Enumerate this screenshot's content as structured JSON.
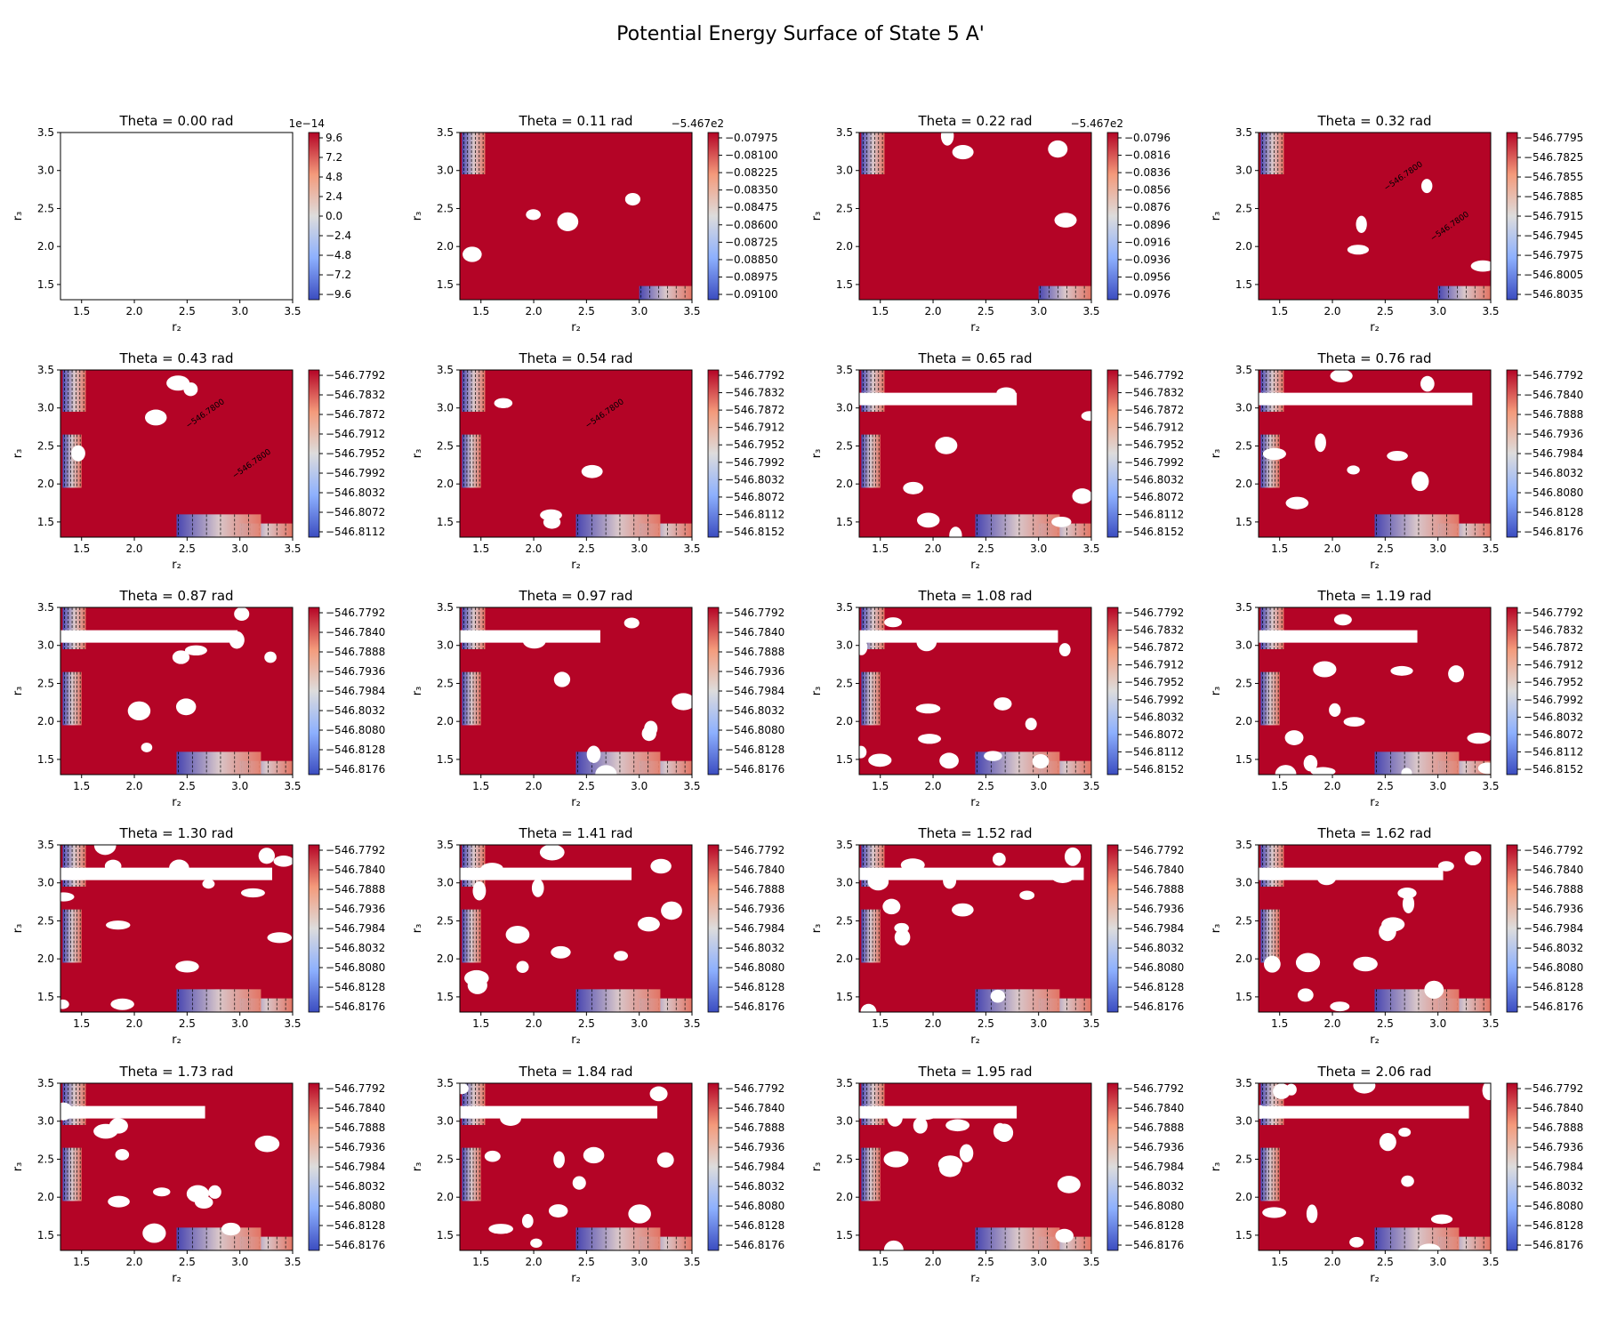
{
  "figure": {
    "title": "Potential Energy Surface of State 5 A'"
  },
  "colors": {
    "dominant": "#b40426",
    "high": "#b40426",
    "mid": "#dddcdc",
    "low": "#3b4cc0",
    "hole": "#ffffff"
  },
  "chart_data": [
    {
      "type": "heatmap",
      "title": "Theta = 0.00 rad",
      "xlabel": "r₂",
      "ylabel": "r₃",
      "xlim": [
        1.3,
        3.5
      ],
      "ylim": [
        1.3,
        3.5
      ],
      "xticks": [
        "1.5",
        "2.0",
        "2.5",
        "3.0",
        "3.5"
      ],
      "yticks": [
        "1.5",
        "2.0",
        "2.5",
        "3.0",
        "3.5"
      ],
      "colorbar": {
        "offset": "1e−14",
        "ticks": [
          "−9.6",
          "−7.2",
          "−4.8",
          "−2.4",
          "0.0",
          "2.4",
          "4.8",
          "7.2",
          "9.6"
        ]
      },
      "field": "empty",
      "fill_color": "#ffffff"
    },
    {
      "type": "heatmap",
      "title": "Theta = 0.11 rad",
      "xlabel": "r₂",
      "ylabel": "r₃",
      "xlim": [
        1.3,
        3.5
      ],
      "ylim": [
        1.3,
        3.5
      ],
      "xticks": [
        "1.5",
        "2.0",
        "2.5",
        "3.0",
        "3.5"
      ],
      "yticks": [
        "1.5",
        "2.0",
        "2.5",
        "3.0",
        "3.5"
      ],
      "colorbar": {
        "offset": "−5.467e2",
        "ticks": [
          "−0.09100",
          "−0.08975",
          "−0.08850",
          "−0.08725",
          "−0.08600",
          "−0.08475",
          "−0.08350",
          "−0.08225",
          "−0.08100",
          "−0.07975"
        ]
      },
      "field": "near-constant maximum",
      "holes": "few"
    },
    {
      "type": "heatmap",
      "title": "Theta = 0.22 rad",
      "xlabel": "r₂",
      "ylabel": "r₃",
      "xlim": [
        1.3,
        3.5
      ],
      "ylim": [
        1.3,
        3.5
      ],
      "xticks": [
        "1.5",
        "2.0",
        "2.5",
        "3.0",
        "3.5"
      ],
      "yticks": [
        "1.5",
        "2.0",
        "2.5",
        "3.0",
        "3.5"
      ],
      "colorbar": {
        "offset": "−5.467e2",
        "ticks": [
          "−0.0976",
          "−0.0956",
          "−0.0936",
          "−0.0916",
          "−0.0896",
          "−0.0876",
          "−0.0856",
          "−0.0836",
          "−0.0816",
          "−0.0796"
        ]
      },
      "field": "near-constant maximum",
      "holes": "few"
    },
    {
      "type": "heatmap",
      "title": "Theta = 0.32 rad",
      "xlabel": "r₂",
      "ylabel": "r₃",
      "xlim": [
        1.3,
        3.5
      ],
      "ylim": [
        1.3,
        3.5
      ],
      "xticks": [
        "1.5",
        "2.0",
        "2.5",
        "3.0",
        "3.5"
      ],
      "yticks": [
        "1.5",
        "2.0",
        "2.5",
        "3.0",
        "3.5"
      ],
      "colorbar": {
        "offset": "",
        "ticks": [
          "−546.8035",
          "−546.8005",
          "−546.7975",
          "−546.7945",
          "−546.7915",
          "−546.7885",
          "−546.7855",
          "−546.7825",
          "−546.7795"
        ]
      },
      "field": "mostly maximum with diagonal ridges",
      "holes": "few",
      "contour_labels": [
        "−546.7800",
        "−546.7800"
      ]
    },
    {
      "type": "heatmap",
      "title": "Theta = 0.43 rad",
      "xlabel": "r₂",
      "ylabel": "r₃",
      "xlim": [
        1.3,
        3.5
      ],
      "ylim": [
        1.3,
        3.5
      ],
      "xticks": [
        "1.5",
        "2.0",
        "2.5",
        "3.0",
        "3.5"
      ],
      "yticks": [
        "1.5",
        "2.0",
        "2.5",
        "3.0",
        "3.5"
      ],
      "colorbar": {
        "offset": "",
        "ticks": [
          "−546.8112",
          "−546.8072",
          "−546.8032",
          "−546.7992",
          "−546.7952",
          "−546.7912",
          "−546.7872",
          "−546.7832",
          "−546.7792"
        ]
      },
      "field": "mostly maximum, minima at corners",
      "holes": "few",
      "contour_labels": [
        "−546.7800",
        "−546.7800"
      ]
    },
    {
      "type": "heatmap",
      "title": "Theta = 0.54 rad",
      "xlabel": "r₂",
      "ylabel": "r₃",
      "xlim": [
        1.3,
        3.5
      ],
      "ylim": [
        1.3,
        3.5
      ],
      "xticks": [
        "1.5",
        "2.0",
        "2.5",
        "3.0",
        "3.5"
      ],
      "yticks": [
        "1.5",
        "2.0",
        "2.5",
        "3.0",
        "3.5"
      ],
      "colorbar": {
        "offset": "",
        "ticks": [
          "−546.8152",
          "−546.8112",
          "−546.8072",
          "−546.8032",
          "−546.7992",
          "−546.7952",
          "−546.7912",
          "−546.7872",
          "−546.7832",
          "−546.7792"
        ]
      },
      "field": "mostly maximum, minima at corners",
      "holes": "few",
      "contour_labels": [
        "−546.7800"
      ]
    },
    {
      "type": "heatmap",
      "title": "Theta = 0.65 rad",
      "xlabel": "r₂",
      "ylabel": "r₃",
      "xlim": [
        1.3,
        3.5
      ],
      "ylim": [
        1.3,
        3.5
      ],
      "xticks": [
        "1.5",
        "2.0",
        "2.5",
        "3.0",
        "3.5"
      ],
      "yticks": [
        "1.5",
        "2.0",
        "2.5",
        "3.0",
        "3.5"
      ],
      "colorbar": {
        "offset": "",
        "ticks": [
          "−546.8152",
          "−546.8112",
          "−546.8072",
          "−546.8032",
          "−546.7992",
          "−546.7952",
          "−546.7912",
          "−546.7872",
          "−546.7832",
          "−546.7792"
        ]
      },
      "field": "mostly maximum, minima at corners",
      "holes": "moderate"
    },
    {
      "type": "heatmap",
      "title": "Theta = 0.76 rad",
      "xlabel": "r₂",
      "ylabel": "r₃",
      "xlim": [
        1.3,
        3.5
      ],
      "ylim": [
        1.3,
        3.5
      ],
      "xticks": [
        "1.5",
        "2.0",
        "2.5",
        "3.0",
        "3.5"
      ],
      "yticks": [
        "1.5",
        "2.0",
        "2.5",
        "3.0",
        "3.5"
      ],
      "colorbar": {
        "offset": "",
        "ticks": [
          "−546.8176",
          "−546.8128",
          "−546.8080",
          "−546.8032",
          "−546.7984",
          "−546.7936",
          "−546.7888",
          "−546.7840",
          "−546.7792"
        ]
      },
      "field": "mostly maximum, minima at corners",
      "holes": "moderate"
    },
    {
      "type": "heatmap",
      "title": "Theta = 0.87 rad",
      "xlabel": "r₂",
      "ylabel": "r₃",
      "xlim": [
        1.3,
        3.5
      ],
      "ylim": [
        1.3,
        3.5
      ],
      "xticks": [
        "1.5",
        "2.0",
        "2.5",
        "3.0",
        "3.5"
      ],
      "yticks": [
        "1.5",
        "2.0",
        "2.5",
        "3.0",
        "3.5"
      ],
      "colorbar": {
        "offset": "",
        "ticks": [
          "−546.8176",
          "−546.8128",
          "−546.8080",
          "−546.8032",
          "−546.7984",
          "−546.7936",
          "−546.7888",
          "−546.7840",
          "−546.7792"
        ]
      },
      "field": "mostly maximum, minima at corners",
      "holes": "moderate"
    },
    {
      "type": "heatmap",
      "title": "Theta = 0.97 rad",
      "xlabel": "r₂",
      "ylabel": "r₃",
      "xlim": [
        1.3,
        3.5
      ],
      "ylim": [
        1.3,
        3.5
      ],
      "xticks": [
        "1.5",
        "2.0",
        "2.5",
        "3.0",
        "3.5"
      ],
      "yticks": [
        "1.5",
        "2.0",
        "2.5",
        "3.0",
        "3.5"
      ],
      "colorbar": {
        "offset": "",
        "ticks": [
          "−546.8176",
          "−546.8128",
          "−546.8080",
          "−546.8032",
          "−546.7984",
          "−546.7936",
          "−546.7888",
          "−546.7840",
          "−546.7792"
        ]
      },
      "field": "mostly maximum, minima at corners",
      "holes": "moderate"
    },
    {
      "type": "heatmap",
      "title": "Theta = 1.08 rad",
      "xlabel": "r₂",
      "ylabel": "r₃",
      "xlim": [
        1.3,
        3.5
      ],
      "ylim": [
        1.3,
        3.5
      ],
      "xticks": [
        "1.5",
        "2.0",
        "2.5",
        "3.0",
        "3.5"
      ],
      "yticks": [
        "1.5",
        "2.0",
        "2.5",
        "3.0",
        "3.5"
      ],
      "colorbar": {
        "offset": "",
        "ticks": [
          "−546.8152",
          "−546.8112",
          "−546.8072",
          "−546.8032",
          "−546.7992",
          "−546.7952",
          "−546.7912",
          "−546.7872",
          "−546.7832",
          "−546.7792"
        ]
      },
      "field": "mostly maximum, minima at corners",
      "holes": "many"
    },
    {
      "type": "heatmap",
      "title": "Theta = 1.19 rad",
      "xlabel": "r₂",
      "ylabel": "r₃",
      "xlim": [
        1.3,
        3.5
      ],
      "ylim": [
        1.3,
        3.5
      ],
      "xticks": [
        "1.5",
        "2.0",
        "2.5",
        "3.0",
        "3.5"
      ],
      "yticks": [
        "1.5",
        "2.0",
        "2.5",
        "3.0",
        "3.5"
      ],
      "colorbar": {
        "offset": "",
        "ticks": [
          "−546.8152",
          "−546.8112",
          "−546.8072",
          "−546.8032",
          "−546.7992",
          "−546.7952",
          "−546.7912",
          "−546.7872",
          "−546.7832",
          "−546.7792"
        ]
      },
      "field": "mostly maximum, minima at corners",
      "holes": "many"
    },
    {
      "type": "heatmap",
      "title": "Theta = 1.30 rad",
      "xlabel": "r₂",
      "ylabel": "r₃",
      "xlim": [
        1.3,
        3.5
      ],
      "ylim": [
        1.3,
        3.5
      ],
      "xticks": [
        "1.5",
        "2.0",
        "2.5",
        "3.0",
        "3.5"
      ],
      "yticks": [
        "1.5",
        "2.0",
        "2.5",
        "3.0",
        "3.5"
      ],
      "colorbar": {
        "offset": "",
        "ticks": [
          "−546.8176",
          "−546.8128",
          "−546.8080",
          "−546.8032",
          "−546.7984",
          "−546.7936",
          "−546.7888",
          "−546.7840",
          "−546.7792"
        ]
      },
      "field": "mostly maximum, minima at corners",
      "holes": "many"
    },
    {
      "type": "heatmap",
      "title": "Theta = 1.41 rad",
      "xlabel": "r₂",
      "ylabel": "r₃",
      "xlim": [
        1.3,
        3.5
      ],
      "ylim": [
        1.3,
        3.5
      ],
      "xticks": [
        "1.5",
        "2.0",
        "2.5",
        "3.0",
        "3.5"
      ],
      "yticks": [
        "1.5",
        "2.0",
        "2.5",
        "3.0",
        "3.5"
      ],
      "colorbar": {
        "offset": "",
        "ticks": [
          "−546.8176",
          "−546.8128",
          "−546.8080",
          "−546.8032",
          "−546.7984",
          "−546.7936",
          "−546.7888",
          "−546.7840",
          "−546.7792"
        ]
      },
      "field": "mostly maximum, minima at corners",
      "holes": "many"
    },
    {
      "type": "heatmap",
      "title": "Theta = 1.52 rad",
      "xlabel": "r₂",
      "ylabel": "r₃",
      "xlim": [
        1.3,
        3.5
      ],
      "ylim": [
        1.3,
        3.5
      ],
      "xticks": [
        "1.5",
        "2.0",
        "2.5",
        "3.0",
        "3.5"
      ],
      "yticks": [
        "1.5",
        "2.0",
        "2.5",
        "3.0",
        "3.5"
      ],
      "colorbar": {
        "offset": "",
        "ticks": [
          "−546.8176",
          "−546.8128",
          "−546.8080",
          "−546.8032",
          "−546.7984",
          "−546.7936",
          "−546.7888",
          "−546.7840",
          "−546.7792"
        ]
      },
      "field": "mostly maximum, minima at corners",
      "holes": "many"
    },
    {
      "type": "heatmap",
      "title": "Theta = 1.62 rad",
      "xlabel": "r₂",
      "ylabel": "r₃",
      "xlim": [
        1.3,
        3.5
      ],
      "ylim": [
        1.3,
        3.5
      ],
      "xticks": [
        "1.5",
        "2.0",
        "2.5",
        "3.0",
        "3.5"
      ],
      "yticks": [
        "1.5",
        "2.0",
        "2.5",
        "3.0",
        "3.5"
      ],
      "colorbar": {
        "offset": "",
        "ticks": [
          "−546.8176",
          "−546.8128",
          "−546.8080",
          "−546.8032",
          "−546.7984",
          "−546.7936",
          "−546.7888",
          "−546.7840",
          "−546.7792"
        ]
      },
      "field": "mostly maximum, minima at corners",
      "holes": "many"
    },
    {
      "type": "heatmap",
      "title": "Theta = 1.73 rad",
      "xlabel": "r₂",
      "ylabel": "r₃",
      "xlim": [
        1.3,
        3.5
      ],
      "ylim": [
        1.3,
        3.5
      ],
      "xticks": [
        "1.5",
        "2.0",
        "2.5",
        "3.0",
        "3.5"
      ],
      "yticks": [
        "1.5",
        "2.0",
        "2.5",
        "3.0",
        "3.5"
      ],
      "colorbar": {
        "offset": "",
        "ticks": [
          "−546.8176",
          "−546.8128",
          "−546.8080",
          "−546.8032",
          "−546.7984",
          "−546.7936",
          "−546.7888",
          "−546.7840",
          "−546.7792"
        ]
      },
      "field": "mostly maximum, minima at corners",
      "holes": "many"
    },
    {
      "type": "heatmap",
      "title": "Theta = 1.84 rad",
      "xlabel": "r₂",
      "ylabel": "r₃",
      "xlim": [
        1.3,
        3.5
      ],
      "ylim": [
        1.3,
        3.5
      ],
      "xticks": [
        "1.5",
        "2.0",
        "2.5",
        "3.0",
        "3.5"
      ],
      "yticks": [
        "1.5",
        "2.0",
        "2.5",
        "3.0",
        "3.5"
      ],
      "colorbar": {
        "offset": "",
        "ticks": [
          "−546.8176",
          "−546.8128",
          "−546.8080",
          "−546.8032",
          "−546.7984",
          "−546.7936",
          "−546.7888",
          "−546.7840",
          "−546.7792"
        ]
      },
      "field": "mostly maximum, minima at corners",
      "holes": "many"
    },
    {
      "type": "heatmap",
      "title": "Theta = 1.95 rad",
      "xlabel": "r₂",
      "ylabel": "r₃",
      "xlim": [
        1.3,
        3.5
      ],
      "ylim": [
        1.3,
        3.5
      ],
      "xticks": [
        "1.5",
        "2.0",
        "2.5",
        "3.0",
        "3.5"
      ],
      "yticks": [
        "1.5",
        "2.0",
        "2.5",
        "3.0",
        "3.5"
      ],
      "colorbar": {
        "offset": "",
        "ticks": [
          "−546.8176",
          "−546.8128",
          "−546.8080",
          "−546.8032",
          "−546.7984",
          "−546.7936",
          "−546.7888",
          "−546.7840",
          "−546.7792"
        ]
      },
      "field": "mostly maximum, minima at corners",
      "holes": "many"
    },
    {
      "type": "heatmap",
      "title": "Theta = 2.06 rad",
      "xlabel": "r₂",
      "ylabel": "r₃",
      "xlim": [
        1.3,
        3.5
      ],
      "ylim": [
        1.3,
        3.5
      ],
      "xticks": [
        "1.5",
        "2.0",
        "2.5",
        "3.0",
        "3.5"
      ],
      "yticks": [
        "1.5",
        "2.0",
        "2.5",
        "3.0",
        "3.5"
      ],
      "colorbar": {
        "offset": "",
        "ticks": [
          "−546.8176",
          "−546.8128",
          "−546.8080",
          "−546.8032",
          "−546.7984",
          "−546.7936",
          "−546.7888",
          "−546.7840",
          "−546.7792"
        ]
      },
      "field": "mostly maximum, minima at corners",
      "holes": "many"
    }
  ]
}
